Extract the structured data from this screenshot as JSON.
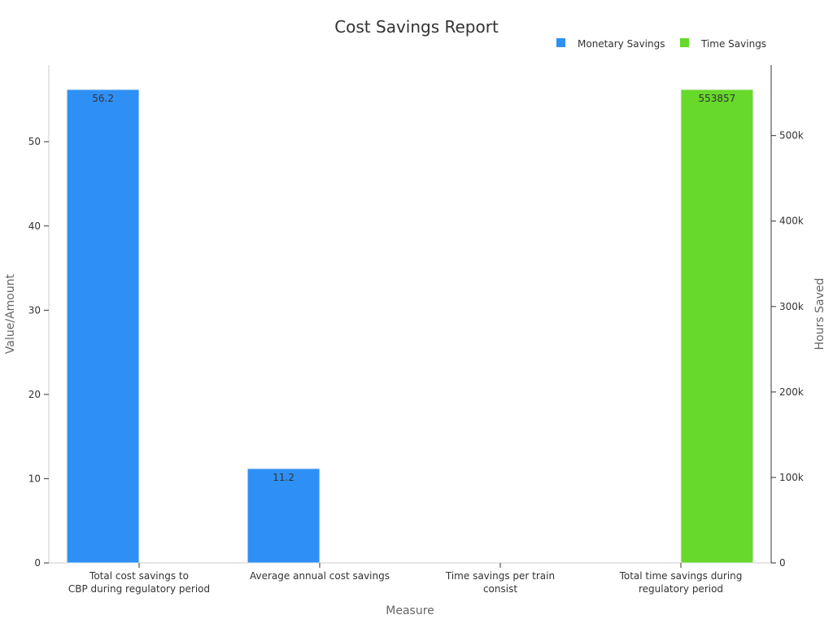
{
  "chart_data": {
    "type": "bar",
    "title": "Cost Savings Report",
    "xlabel": "Measure",
    "ylabel": "Value/Amount",
    "y2label": "Hours Saved",
    "categories": [
      [
        "Total cost savings to",
        "CBP during regulatory period"
      ],
      [
        "Average annual cost savings"
      ],
      [
        "Time savings per train",
        "consist"
      ],
      [
        "Total time savings during",
        "regulatory period"
      ]
    ],
    "series": [
      {
        "name": "Monetary Savings",
        "axis": "left",
        "color": "#2e90f5",
        "values": [
          56.2,
          11.2,
          null,
          null
        ],
        "labels": [
          "56.2",
          "11.2",
          "",
          ""
        ]
      },
      {
        "name": "Time Savings",
        "axis": "right",
        "color": "#66d92a",
        "values": [
          null,
          null,
          null,
          553857
        ],
        "labels": [
          "",
          "",
          "",
          "553857"
        ]
      }
    ],
    "ylim": [
      0,
      59.1
    ],
    "y_ticks": [
      0,
      10,
      20,
      30,
      40,
      50
    ],
    "y_tick_labels": [
      "0",
      "10",
      "20",
      "30",
      "40",
      "50"
    ],
    "y2lim": [
      0,
      582500
    ],
    "y2_ticks": [
      0,
      100000,
      200000,
      300000,
      400000,
      500000
    ],
    "y2_tick_labels": [
      "0",
      "100k",
      "200k",
      "300k",
      "400k",
      "500k"
    ],
    "legend_position": "top-right",
    "grid": false
  }
}
